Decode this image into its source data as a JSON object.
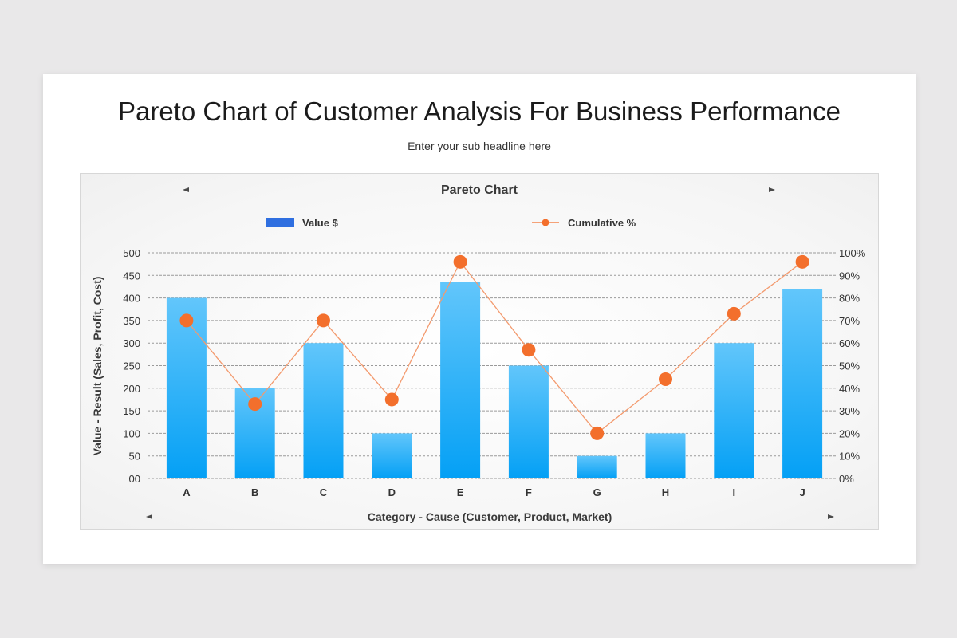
{
  "slide": {
    "title": "Pareto Chart of Customer Analysis For Business Performance",
    "subtitle": "Enter your sub headline here"
  },
  "chart_data": {
    "type": "bar",
    "title": "Pareto Chart",
    "xlabel": "Category - Cause (Customer, Product, Market)",
    "ylabel": "Value - Result (Sales, Profit, Cost)",
    "categories": [
      "A",
      "B",
      "C",
      "D",
      "E",
      "F",
      "G",
      "H",
      "I",
      "J"
    ],
    "series": [
      {
        "name": "Value $",
        "type": "bar",
        "axis": "left",
        "color": "#29a7f5",
        "values": [
          400,
          200,
          300,
          100,
          435,
          250,
          50,
          100,
          300,
          420
        ]
      },
      {
        "name": "Cumulative %",
        "type": "line",
        "axis": "right",
        "color": "#f36f2c",
        "values": [
          70,
          33,
          70,
          35,
          96,
          57,
          20,
          44,
          73,
          96
        ]
      }
    ],
    "ylim": [
      0,
      500
    ],
    "y_ticks": [
      "00",
      "50",
      "100",
      "150",
      "200",
      "250",
      "300",
      "350",
      "400",
      "450",
      "500"
    ],
    "y2lim": [
      0,
      100
    ],
    "y2_ticks": [
      "0%",
      "10%",
      "20%",
      "30%",
      "40%",
      "50%",
      "60%",
      "70%",
      "80%",
      "90%",
      "100%"
    ],
    "grid": true,
    "legend_position": "top"
  }
}
